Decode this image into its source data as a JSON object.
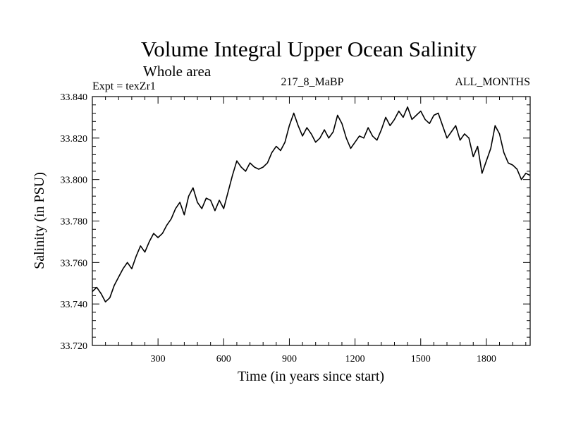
{
  "chart_data": {
    "type": "line",
    "title": "Volume Integral Upper Ocean Salinity",
    "subtitle": "Whole area",
    "header_left": "Expt = texZr1",
    "header_center": "217_8_MaBP",
    "header_right": "ALL_MONTHS",
    "xlabel": "Time (in years since start)",
    "ylabel": "Salinity (in PSU)",
    "xlim": [
      0,
      2000
    ],
    "ylim": [
      33.72,
      33.84
    ],
    "x_ticks": [
      300,
      600,
      900,
      1200,
      1500,
      1800
    ],
    "x_tick_labels": [
      "300",
      "600",
      "900",
      "1200",
      "1500",
      "1800"
    ],
    "y_ticks": [
      33.72,
      33.74,
      33.76,
      33.78,
      33.8,
      33.82,
      33.84
    ],
    "y_tick_labels": [
      "33.720",
      "33.740",
      "33.760",
      "33.780",
      "33.800",
      "33.820",
      "33.840"
    ],
    "series": [
      {
        "name": "Salinity",
        "color": "#000000",
        "x": [
          0,
          20,
          40,
          60,
          80,
          100,
          120,
          140,
          160,
          180,
          200,
          220,
          240,
          260,
          280,
          300,
          320,
          340,
          360,
          380,
          400,
          420,
          440,
          460,
          480,
          500,
          520,
          540,
          560,
          580,
          600,
          620,
          640,
          660,
          680,
          700,
          720,
          740,
          760,
          780,
          800,
          820,
          840,
          860,
          880,
          900,
          920,
          940,
          960,
          980,
          1000,
          1020,
          1040,
          1060,
          1080,
          1100,
          1120,
          1140,
          1160,
          1180,
          1200,
          1220,
          1240,
          1260,
          1280,
          1300,
          1320,
          1340,
          1360,
          1380,
          1400,
          1420,
          1440,
          1460,
          1480,
          1500,
          1520,
          1540,
          1560,
          1580,
          1600,
          1620,
          1640,
          1660,
          1680,
          1700,
          1720,
          1740,
          1760,
          1780,
          1800,
          1820,
          1840,
          1860,
          1880,
          1900,
          1920,
          1940,
          1960,
          1980,
          2000
        ],
        "values": [
          33.746,
          33.748,
          33.745,
          33.741,
          33.743,
          33.749,
          33.753,
          33.757,
          33.76,
          33.757,
          33.763,
          33.768,
          33.765,
          33.77,
          33.774,
          33.772,
          33.774,
          33.778,
          33.781,
          33.786,
          33.789,
          33.783,
          33.792,
          33.796,
          33.789,
          33.786,
          33.791,
          33.79,
          33.785,
          33.79,
          33.786,
          33.794,
          33.802,
          33.809,
          33.806,
          33.804,
          33.808,
          33.806,
          33.805,
          33.806,
          33.808,
          33.813,
          33.816,
          33.814,
          33.818,
          33.826,
          33.832,
          33.826,
          33.821,
          33.825,
          33.822,
          33.818,
          33.82,
          33.824,
          33.82,
          33.823,
          33.831,
          33.827,
          33.82,
          33.815,
          33.818,
          33.821,
          33.82,
          33.825,
          33.821,
          33.819,
          33.824,
          33.83,
          33.826,
          33.829,
          33.833,
          33.83,
          33.835,
          33.829,
          33.831,
          33.833,
          33.829,
          33.827,
          33.831,
          33.832,
          33.826,
          33.82,
          33.823,
          33.826,
          33.819,
          33.822,
          33.82,
          33.811,
          33.816,
          33.803,
          33.809,
          33.815,
          33.826,
          33.822,
          33.813,
          33.808,
          33.807,
          33.805,
          33.8,
          33.803,
          33.802
        ]
      }
    ]
  }
}
